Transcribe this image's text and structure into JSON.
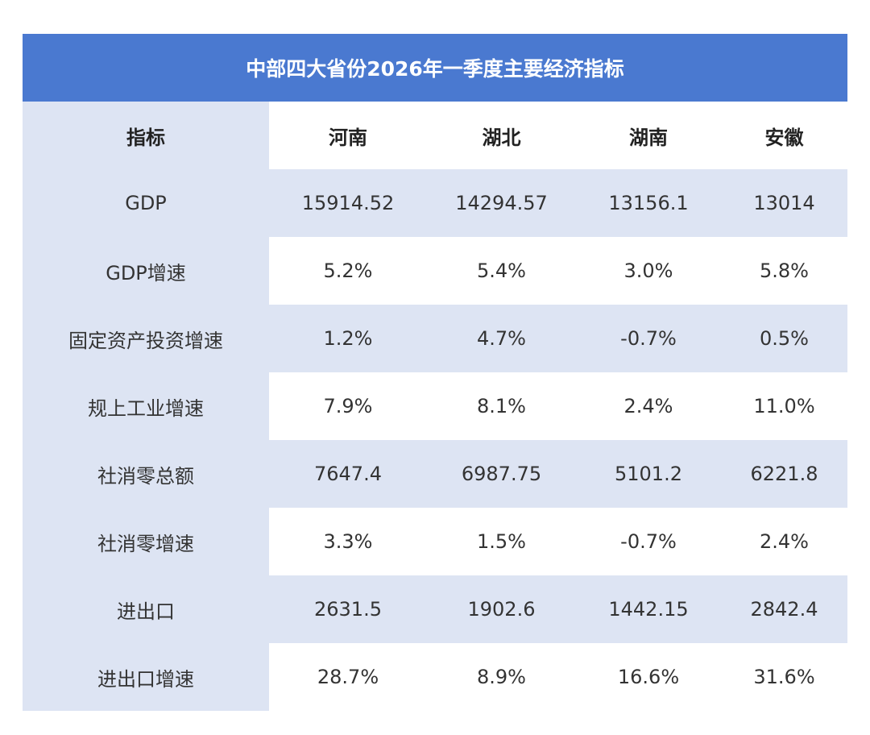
{
  "title": "中部四大省份2026年一季度主要经济指标",
  "table": {
    "header": [
      "指标",
      "河南",
      "湖北",
      "湖南",
      "安徽"
    ],
    "rows": [
      [
        "GDP",
        "15914.52",
        "14294.57",
        "13156.1",
        "13014"
      ],
      [
        "GDP增速",
        "5.2%",
        "5.4%",
        "3.0%",
        "5.8%"
      ],
      [
        "固定资产投资增速",
        "1.2%",
        "4.7%",
        "-0.7%",
        "0.5%"
      ],
      [
        "规上工业增速",
        "7.9%",
        "8.1%",
        "2.4%",
        "11.0%"
      ],
      [
        "社消零总额",
        "7647.4",
        "6987.75",
        "5101.2",
        "6221.8"
      ],
      [
        "社消零增速",
        "3.3%",
        "1.5%",
        "-0.7%",
        "2.4%"
      ],
      [
        "进出口",
        "2631.5",
        "1902.6",
        "1442.15",
        "2842.4"
      ],
      [
        "进出口增速",
        "28.7%",
        "8.9%",
        "16.6%",
        "31.6%"
      ]
    ]
  }
}
